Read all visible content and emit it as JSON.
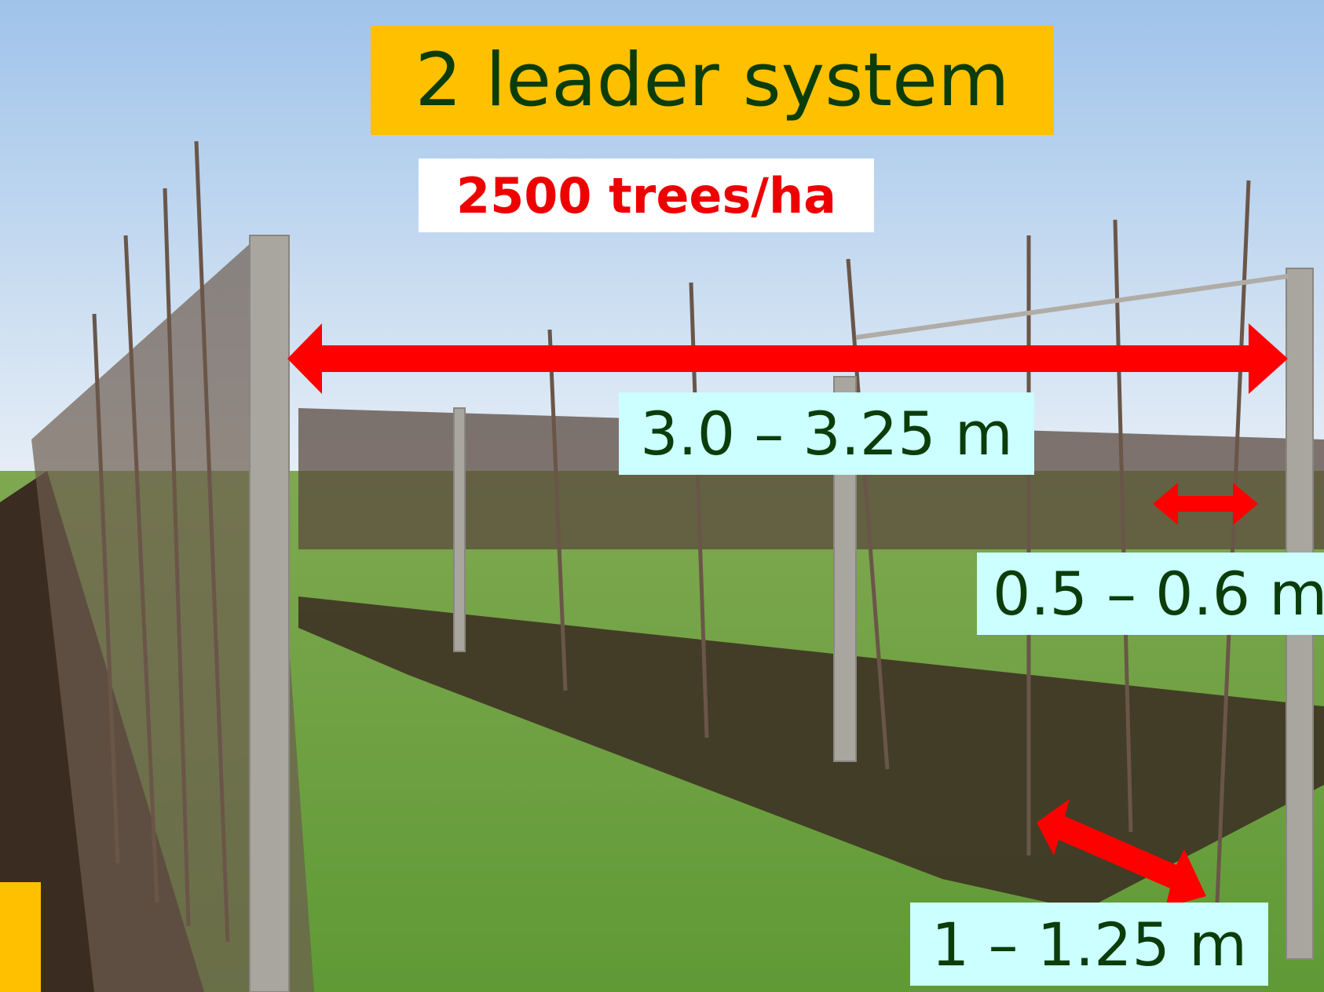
{
  "title": "2 leader system",
  "density": "2500 trees/ha",
  "dimensions": {
    "row_spacing": "3.0 – 3.25 m",
    "leader_spacing": "0.5 – 0.6 m",
    "tree_spacing": "1 – 1.25 m"
  }
}
